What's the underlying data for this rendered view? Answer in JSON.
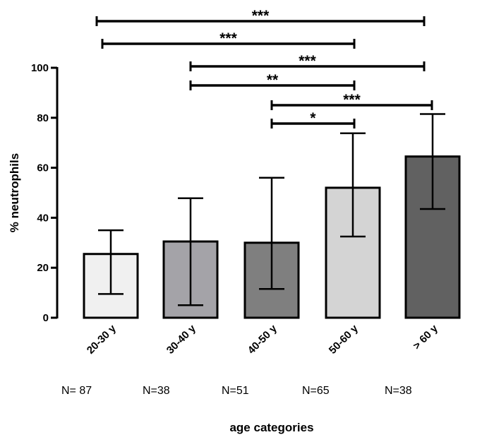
{
  "chart_data": {
    "type": "bar",
    "ylabel": "% neutrophils",
    "xlabel": "age categories",
    "ylim": [
      0,
      100
    ],
    "yticks": [
      0,
      20,
      40,
      60,
      80,
      100
    ],
    "grid": false,
    "categories": [
      "20-30 y",
      "30-40 y",
      "40-50 y",
      "50-60 y",
      "> 60 y"
    ],
    "values": [
      25.5,
      30.5,
      30.0,
      52.0,
      64.5
    ],
    "error_upper": [
      35.0,
      47.8,
      56.0,
      73.8,
      81.5
    ],
    "error_lower": [
      9.5,
      5.0,
      11.5,
      32.5,
      43.5
    ],
    "bar_colors": [
      "#f0f0f0",
      "#a4a3a8",
      "#7f7f7f",
      "#d4d4d4",
      "#616161"
    ],
    "sample_sizes": [
      "N= 87",
      "N=38",
      "N=51",
      "N=65",
      "N=38"
    ],
    "significance": [
      {
        "from": 0,
        "to": 4,
        "label": "***"
      },
      {
        "from": 0,
        "to": 3,
        "label": "***"
      },
      {
        "from": 1,
        "to": 4,
        "label": "***"
      },
      {
        "from": 1,
        "to": 3,
        "label": "**"
      },
      {
        "from": 2,
        "to": 4,
        "label": "***"
      },
      {
        "from": 2,
        "to": 3,
        "label": "*"
      }
    ]
  }
}
